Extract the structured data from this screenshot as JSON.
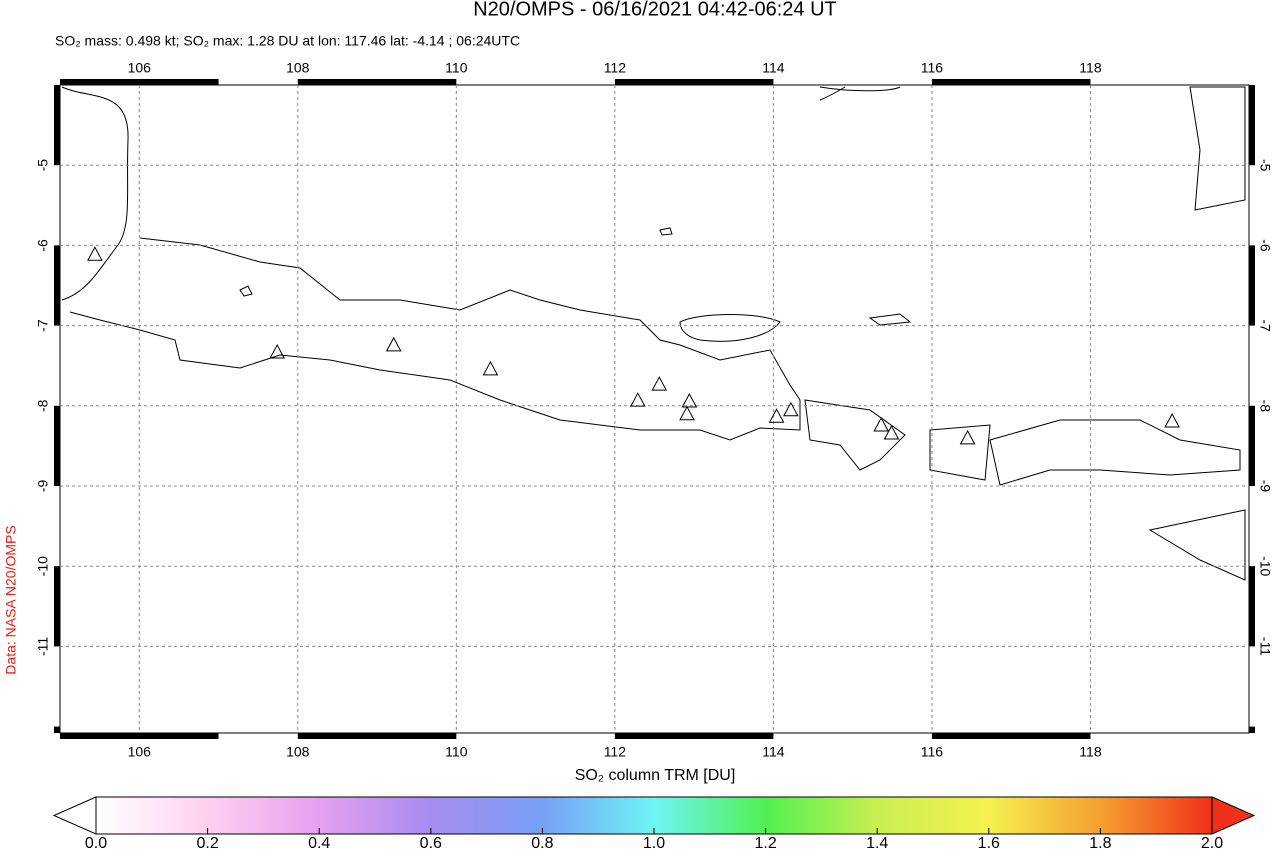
{
  "chart_data": {
    "type": "map",
    "title": "N20/OMPS - 06/16/2021 04:42-06:24 UT",
    "subtitle": "SO₂ mass: 0.498 kt; SO₂ max: 1.28 DU at lon: 117.46 lat: -4.14 ; 06:24UTC",
    "credit": "Data: NASA N20/OMPS",
    "colorbar_label": "SO₂ column TRM [DU]",
    "xlim": [
      105,
      120
    ],
    "ylim": [
      -12.08,
      -4
    ],
    "xticks": [
      106,
      108,
      110,
      112,
      114,
      116,
      118
    ],
    "yticks": [
      -5,
      -6,
      -7,
      -8,
      -9,
      -10,
      -11
    ],
    "grid": true,
    "clim": [
      0,
      2
    ],
    "cticks": [
      {
        "value": 0,
        "label": "0.0"
      },
      0.2,
      0.4,
      0.6,
      0.8,
      {
        "value": 1,
        "label": "1.0"
      },
      1.2,
      1.4,
      1.6,
      1.8,
      {
        "value": 2,
        "label": "2.0"
      }
    ],
    "colormap": [
      "#ffffff",
      "#ffd0f0",
      "#e6a0f0",
      "#a58cf0",
      "#78a0f5",
      "#6ef5f5",
      "#50f050",
      "#c8f050",
      "#f5f050",
      "#f5a030",
      "#f03018"
    ],
    "volcanoes": {
      "x": [
        105.44,
        107.74,
        109.21,
        110.43,
        112.29,
        112.56,
        112.94,
        112.91,
        114.04,
        114.22,
        115.36,
        115.49,
        116.45,
        119.03
      ],
      "y": [
        -6.11,
        -7.33,
        -7.24,
        -7.54,
        -7.93,
        -7.73,
        -7.94,
        -8.1,
        -8.13,
        -8.05,
        -8.24,
        -8.34,
        -8.4,
        -8.19
      ]
    }
  }
}
